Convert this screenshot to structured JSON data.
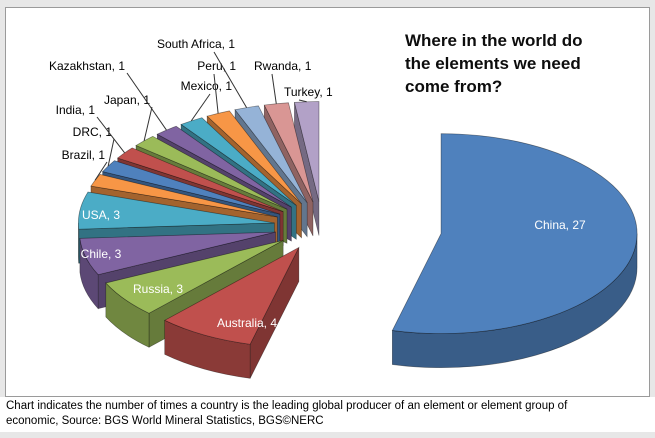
{
  "title": {
    "text": "Where in the world do the elements we need come from?"
  },
  "caption": {
    "line1": "Chart indicates the number of times a country is the leading global producer of an element or element group of",
    "line2": "economic, Source: BGS World Mineral Statistics, BGS©NERC"
  },
  "chart_data": {
    "type": "pie",
    "style": "3d-exploded",
    "title": "Where in the world do the elements we need come from?",
    "total": 50,
    "legend_position": "none",
    "label_format": "{category}, {value}",
    "exploded_slice": "China",
    "categories": [
      "China",
      "Australia",
      "Russia",
      "Chile",
      "USA",
      "Brazil",
      "DRC",
      "India",
      "Japan",
      "Kazakhstan",
      "Mexico",
      "Peru",
      "South Africa",
      "Rwanda",
      "Turkey"
    ],
    "values": [
      27,
      4,
      3,
      3,
      3,
      1,
      1,
      1,
      1,
      1,
      1,
      1,
      1,
      1,
      1
    ],
    "colors": [
      "#4F81BD",
      "#C0504D",
      "#9BBB59",
      "#8064A2",
      "#4BACC6",
      "#F79646",
      "#4F81BD",
      "#C0504D",
      "#9BBB59",
      "#8064A2",
      "#4BACC6",
      "#F79646",
      "#95B3D7",
      "#D99694",
      "#B2A1C7"
    ]
  }
}
